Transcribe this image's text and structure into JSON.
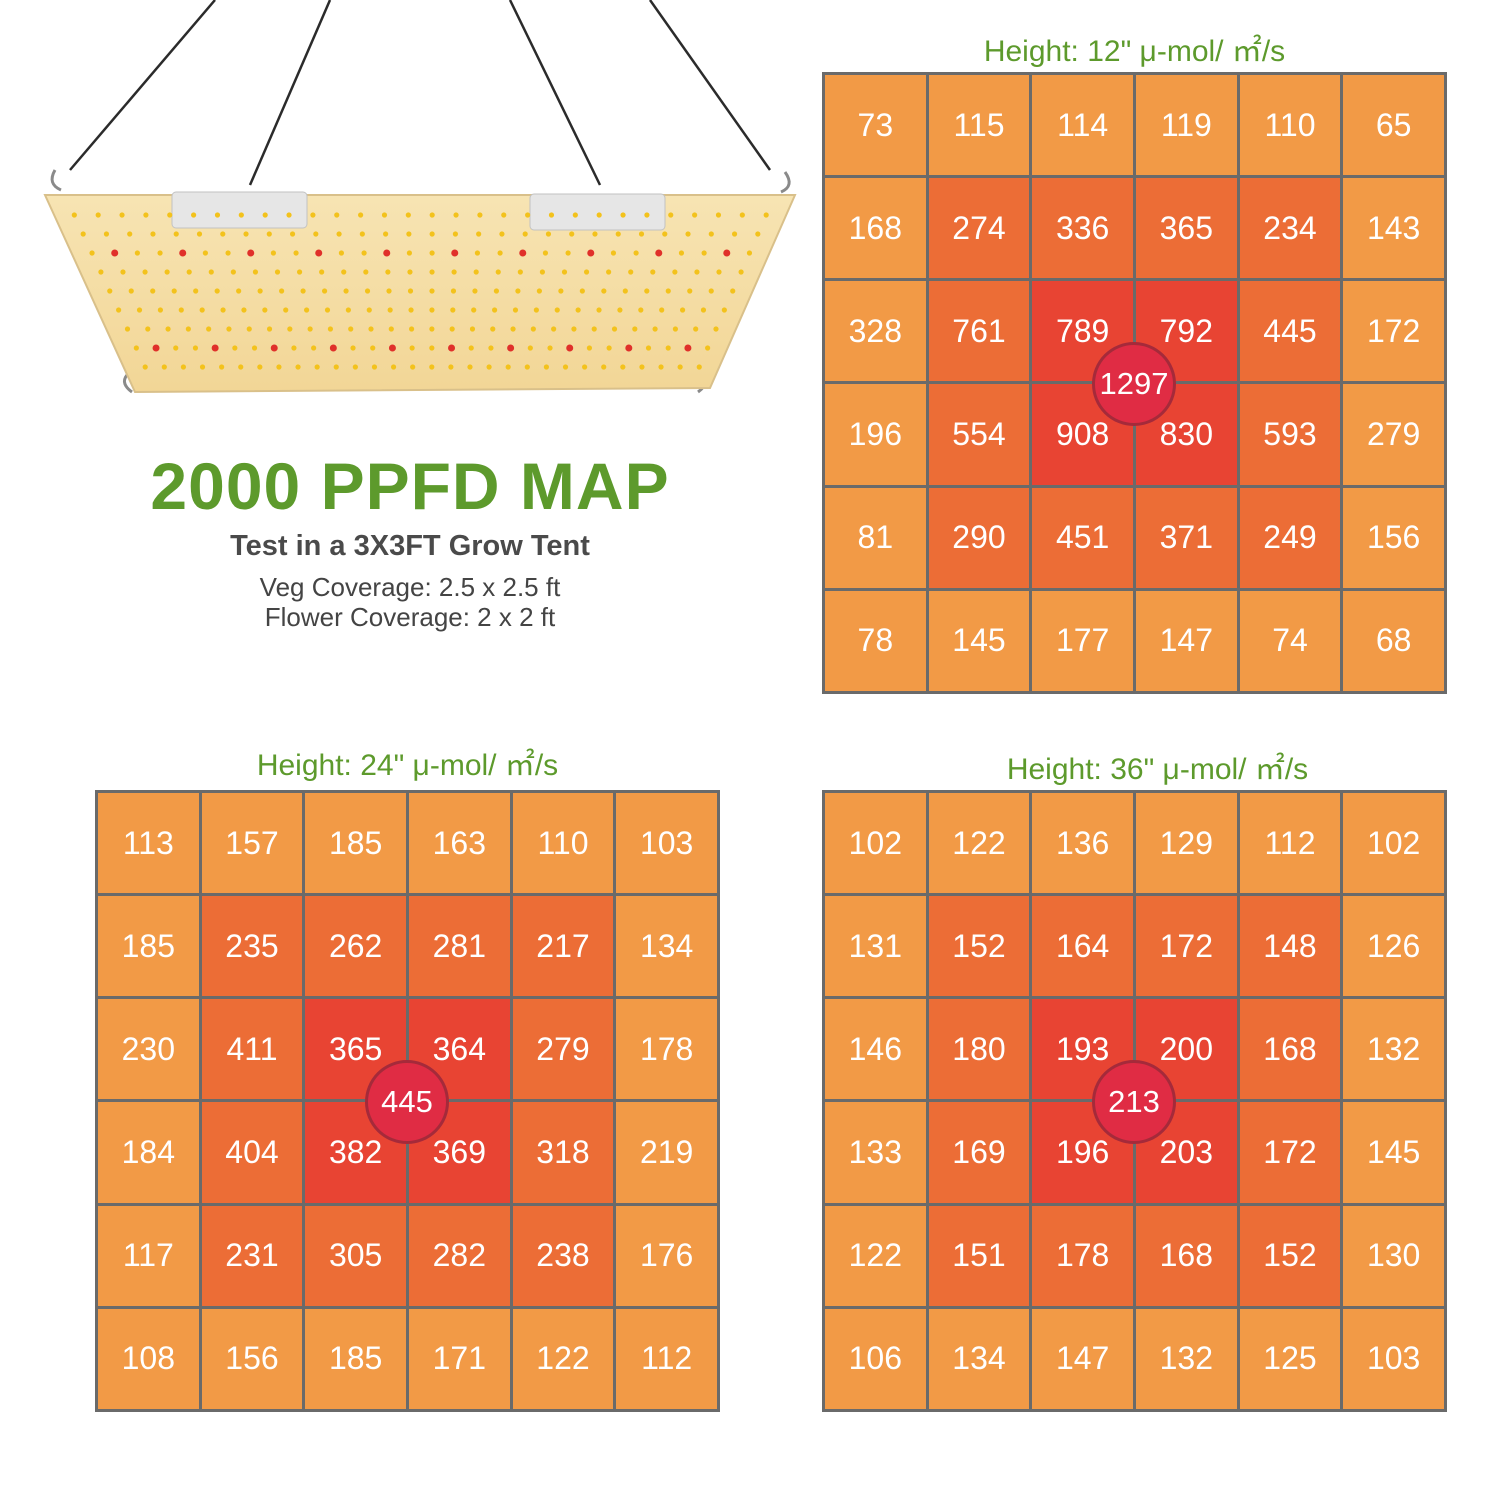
{
  "headline": {
    "title": "2000 PPFD MAP",
    "subtitle": "Test in a 3X3FT Grow Tent",
    "veg_coverage": "Veg Coverage: 2.5 x 2.5 ft",
    "flower_coverage": "Flower Coverage: 2 x 2 ft"
  },
  "colors": {
    "title_green": "#5d9a2c",
    "cell_outer": "#f29a46",
    "cell_mid": "#ec6d36",
    "cell_inner": "#e84433",
    "center_badge": "#e02c44"
  },
  "chart_data": [
    {
      "type": "heatmap",
      "title": "Height: 12\" μ-mol/ ㎡/s",
      "center_value": "1297",
      "rows": [
        [
          "73",
          "115",
          "114",
          "119",
          "110",
          "65"
        ],
        [
          "168",
          "274",
          "336",
          "365",
          "234",
          "143"
        ],
        [
          "328",
          "761",
          "789",
          "792",
          "445",
          "172"
        ],
        [
          "196",
          "554",
          "908",
          "830",
          "593",
          "279"
        ],
        [
          "81",
          "290",
          "451",
          "371",
          "249",
          "156"
        ],
        [
          "78",
          "145",
          "177",
          "147",
          "74",
          "68"
        ]
      ]
    },
    {
      "type": "heatmap",
      "title": "Height: 24\" μ-mol/ ㎡/s",
      "center_value": "445",
      "rows": [
        [
          "113",
          "157",
          "185",
          "163",
          "110",
          "103"
        ],
        [
          "185",
          "235",
          "262",
          "281",
          "217",
          "134"
        ],
        [
          "230",
          "411",
          "365",
          "364",
          "279",
          "178"
        ],
        [
          "184",
          "404",
          "382",
          "369",
          "318",
          "219"
        ],
        [
          "117",
          "231",
          "305",
          "282",
          "238",
          "176"
        ],
        [
          "108",
          "156",
          "185",
          "171",
          "122",
          "112"
        ]
      ]
    },
    {
      "type": "heatmap",
      "title": "Height: 36\" μ-mol/ ㎡/s",
      "center_value": "213",
      "rows": [
        [
          "102",
          "122",
          "136",
          "129",
          "112",
          "102"
        ],
        [
          "131",
          "152",
          "164",
          "172",
          "148",
          "126"
        ],
        [
          "146",
          "180",
          "193",
          "200",
          "168",
          "132"
        ],
        [
          "133",
          "169",
          "196",
          "203",
          "172",
          "145"
        ],
        [
          "122",
          "151",
          "178",
          "168",
          "152",
          "130"
        ],
        [
          "106",
          "134",
          "147",
          "132",
          "125",
          "103"
        ]
      ]
    }
  ]
}
